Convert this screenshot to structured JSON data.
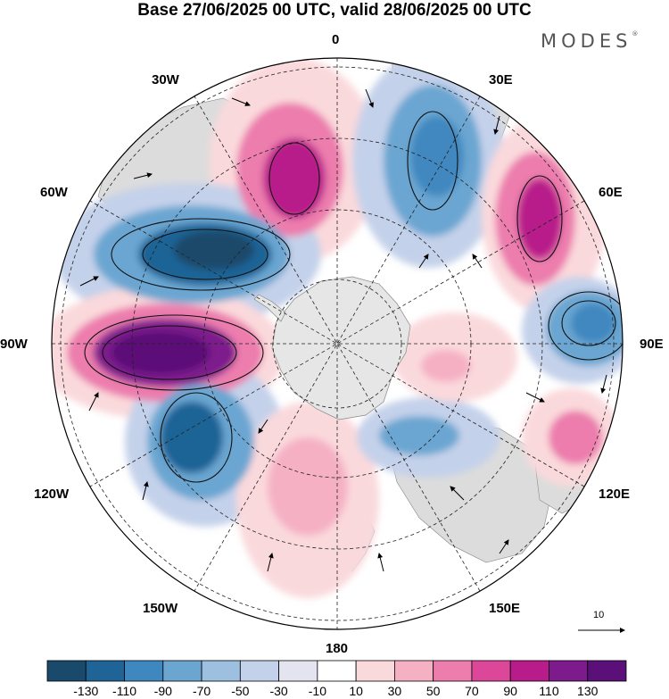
{
  "title": "Base 27/06/2025 00 UTC, valid 28/06/2025 00 UTC",
  "brand": "MODES",
  "brand_mark": "®",
  "longitude_labels": {
    "lon_0": "0",
    "lon_30e": "30E",
    "lon_60e": "60E",
    "lon_90e": "90E",
    "lon_120e": "120E",
    "lon_150e": "150E",
    "lon_180": "180",
    "lon_150w": "150W",
    "lon_120w": "120W",
    "lon_90w": "90W",
    "lon_60w": "60W",
    "lon_30w": "30W"
  },
  "reference_vector": "10",
  "colorbar": {
    "labels": [
      "-130",
      "-110",
      "-90",
      "-70",
      "-50",
      "-30",
      "-10",
      "10",
      "30",
      "50",
      "70",
      "90",
      "110",
      "130"
    ],
    "colors": [
      "#1a4a6b",
      "#1f6496",
      "#3f88bf",
      "#6ba6d1",
      "#9dbfe0",
      "#c4d1ea",
      "#e4e4f1",
      "#ffffff",
      "#fad9dc",
      "#f5b0c4",
      "#ec7dad",
      "#dc479a",
      "#b81c8a",
      "#7d1a8c",
      "#5b0f78"
    ]
  },
  "map": {
    "projection": "south polar stereographic",
    "field_colors": {
      "land": "#dcdcdc",
      "antarctica": "#e6e6e6"
    }
  }
}
